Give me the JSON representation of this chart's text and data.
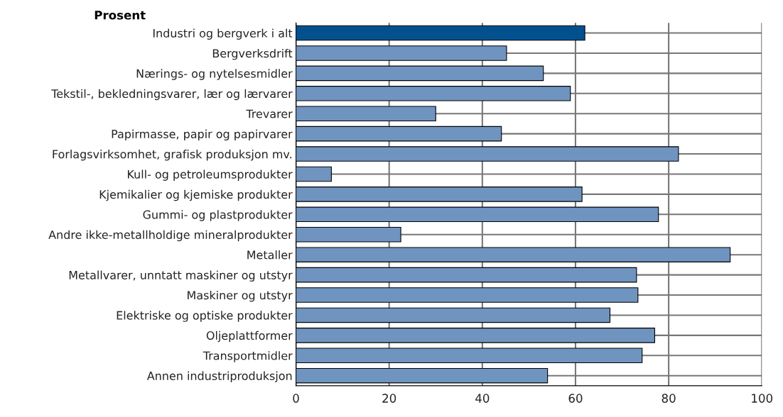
{
  "chart_data": {
    "type": "bar",
    "orientation": "horizontal",
    "title": "Prosent",
    "categories": [
      "Industri og bergverk i alt",
      "Bergverksdrift",
      "Nærings- og nytelsesmidler",
      "Tekstil-, bekledningsvarer, lær og lærvarer",
      "Trevarer",
      "Papirmasse, papir og papirvarer",
      "Forlagsvirksomhet, grafisk produksjon mv.",
      "Kull- og petroleumsprodukter",
      "Kjemikalier og kjemiske produkter",
      "Gummi- og plastprodukter",
      "Andre ikke-metallholdige mineralprodukter",
      "Metaller",
      "Metallvarer, unntatt maskiner og utstyr",
      "Maskiner og utstyr",
      "Elektriske og optiske produkter",
      "Oljeplattformer",
      "Transportmidler",
      "Annen industriproduksjon"
    ],
    "values": [
      62.0,
      45.2,
      53.1,
      58.9,
      30.0,
      44.1,
      82.1,
      7.6,
      61.4,
      77.8,
      22.5,
      93.2,
      73.1,
      73.4,
      67.4,
      77.0,
      74.3,
      54.0
    ],
    "colors": [
      "#03508f",
      "#7094c0",
      "#7094c0",
      "#7094c0",
      "#7094c0",
      "#7094c0",
      "#7094c0",
      "#7094c0",
      "#7094c0",
      "#7094c0",
      "#7094c0",
      "#7094c0",
      "#7094c0",
      "#7094c0",
      "#7094c0",
      "#7094c0",
      "#7094c0",
      "#7094c0"
    ],
    "xlim": [
      0,
      100
    ],
    "xticks": [
      0,
      20,
      40,
      60,
      80,
      100
    ],
    "grid": true
  }
}
